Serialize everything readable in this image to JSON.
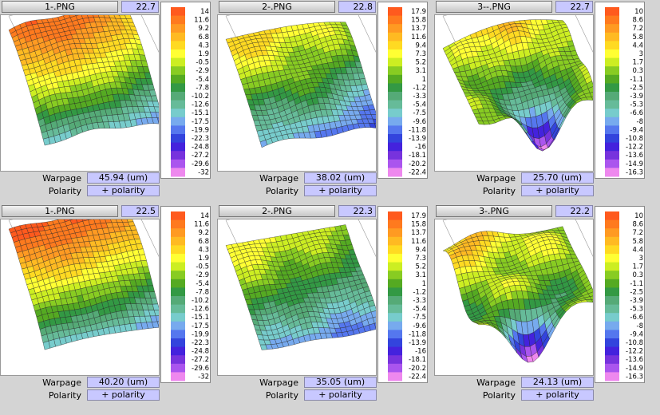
{
  "scale_a": [
    "14",
    "11.6",
    "9.2",
    "6.8",
    "4.3",
    "1.9",
    "-0.5",
    "-2.9",
    "-5.4",
    "-7.8",
    "-10.2",
    "-12.6",
    "-15.1",
    "-17.5",
    "-19.9",
    "-22.3",
    "-24.8",
    "-27.2",
    "-29.6",
    "-32"
  ],
  "scale_b": [
    "17.9",
    "15.8",
    "13.7",
    "11.6",
    "9.4",
    "7.3",
    "5.2",
    "3.1",
    "1",
    "-1.2",
    "-3.3",
    "-5.4",
    "-7.5",
    "-9.6",
    "-11.8",
    "-13.9",
    "-16",
    "-18.1",
    "-20.2",
    "-22.4"
  ],
  "scale_c": [
    "10",
    "8.6",
    "7.2",
    "5.8",
    "4.4",
    "3",
    "1.7",
    "0.3",
    "-1.1",
    "-2.5",
    "-3.9",
    "-5.3",
    "-6.6",
    "-8",
    "-9.4",
    "-10.8",
    "-12.2",
    "-13.6",
    "-14.9",
    "-16.3"
  ],
  "colors": [
    "#ff5a1e",
    "#ff7a1e",
    "#ff9a22",
    "#ffba22",
    "#ffda22",
    "#ffff33",
    "#ccee22",
    "#88cc22",
    "#55aa22",
    "#339944",
    "#55aa77",
    "#66bb99",
    "#77cccc",
    "#77aaee",
    "#5577ee",
    "#3344dd",
    "#4422dd",
    "#7733dd",
    "#aa55ee",
    "#ee88ee"
  ],
  "labels": {
    "warpage": "Warpage",
    "polarity": "Polarity"
  },
  "panels": [
    {
      "title": "1-.PNG",
      "temp": "22.7",
      "warpage": "45.94 (um)",
      "polarity": "+ polarity"
    },
    {
      "title": "2-.PNG",
      "temp": "22.8",
      "warpage": "38.02 (um)",
      "polarity": "+ polarity"
    },
    {
      "title": "3--.PNG",
      "temp": "22.7",
      "warpage": "25.70 (um)",
      "polarity": "+ polarity"
    },
    {
      "title": "1-.PNG",
      "temp": "22.5",
      "warpage": "40.20 (um)",
      "polarity": "+ polarity"
    },
    {
      "title": "2-.PNG",
      "temp": "22.3",
      "warpage": "35.05 (um)",
      "polarity": "+ polarity"
    },
    {
      "title": "3-.PNG",
      "temp": "22.2",
      "warpage": "24.13 (um)",
      "polarity": "+ polarity"
    }
  ]
}
